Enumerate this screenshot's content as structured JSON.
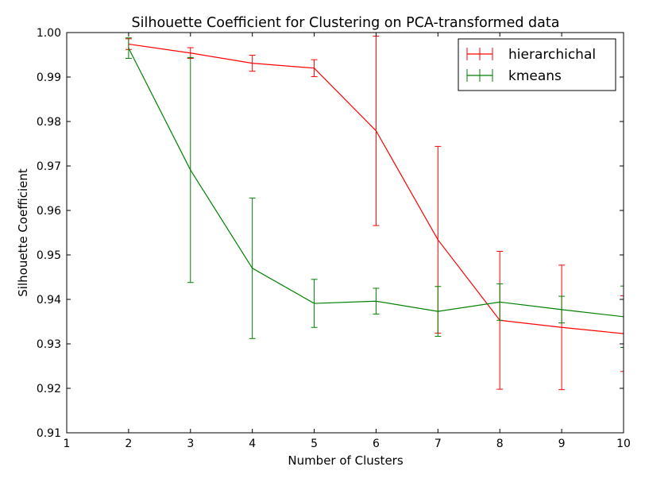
{
  "chart_data": {
    "type": "line",
    "title": "Silhouette Coefficient for Clustering on PCA-transformed data",
    "xlabel": "Number of Clusters",
    "ylabel": "Silhouette Coefficient",
    "xlim": [
      1,
      10
    ],
    "ylim": [
      0.91,
      1.0
    ],
    "xticks": [
      1,
      2,
      3,
      4,
      5,
      6,
      7,
      8,
      9,
      10
    ],
    "xtick_labels": [
      "1",
      "2",
      "3",
      "4",
      "5",
      "6",
      "7",
      "8",
      "9",
      "10"
    ],
    "yticks": [
      0.91,
      0.92,
      0.93,
      0.94,
      0.95,
      0.96,
      0.97,
      0.98,
      0.99,
      1.0
    ],
    "ytick_labels": [
      "0.91",
      "0.92",
      "0.93",
      "0.94",
      "0.95",
      "0.96",
      "0.97",
      "0.98",
      "0.99",
      "1.00"
    ],
    "grid": false,
    "legend_position": "top-right",
    "x": [
      2,
      3,
      4,
      5,
      6,
      7,
      8,
      9,
      10
    ],
    "series": [
      {
        "name": "hierarchichal",
        "color": "#ff0000",
        "values": [
          0.9974,
          0.9954,
          0.9931,
          0.992,
          0.9779,
          0.9534,
          0.9353,
          0.9337,
          0.9323
        ],
        "errors": [
          0.0012,
          0.0012,
          0.0018,
          0.0019,
          0.0213,
          0.021,
          0.0155,
          0.014,
          0.0085
        ]
      },
      {
        "name": "kmeans",
        "color": "#008000",
        "values": [
          0.9965,
          0.9691,
          0.947,
          0.9391,
          0.9396,
          0.9373,
          0.9394,
          0.9377,
          0.9361
        ],
        "errors": [
          0.0023,
          0.0253,
          0.0158,
          0.0054,
          0.0029,
          0.0056,
          0.0041,
          0.003,
          0.0069
        ]
      }
    ]
  }
}
